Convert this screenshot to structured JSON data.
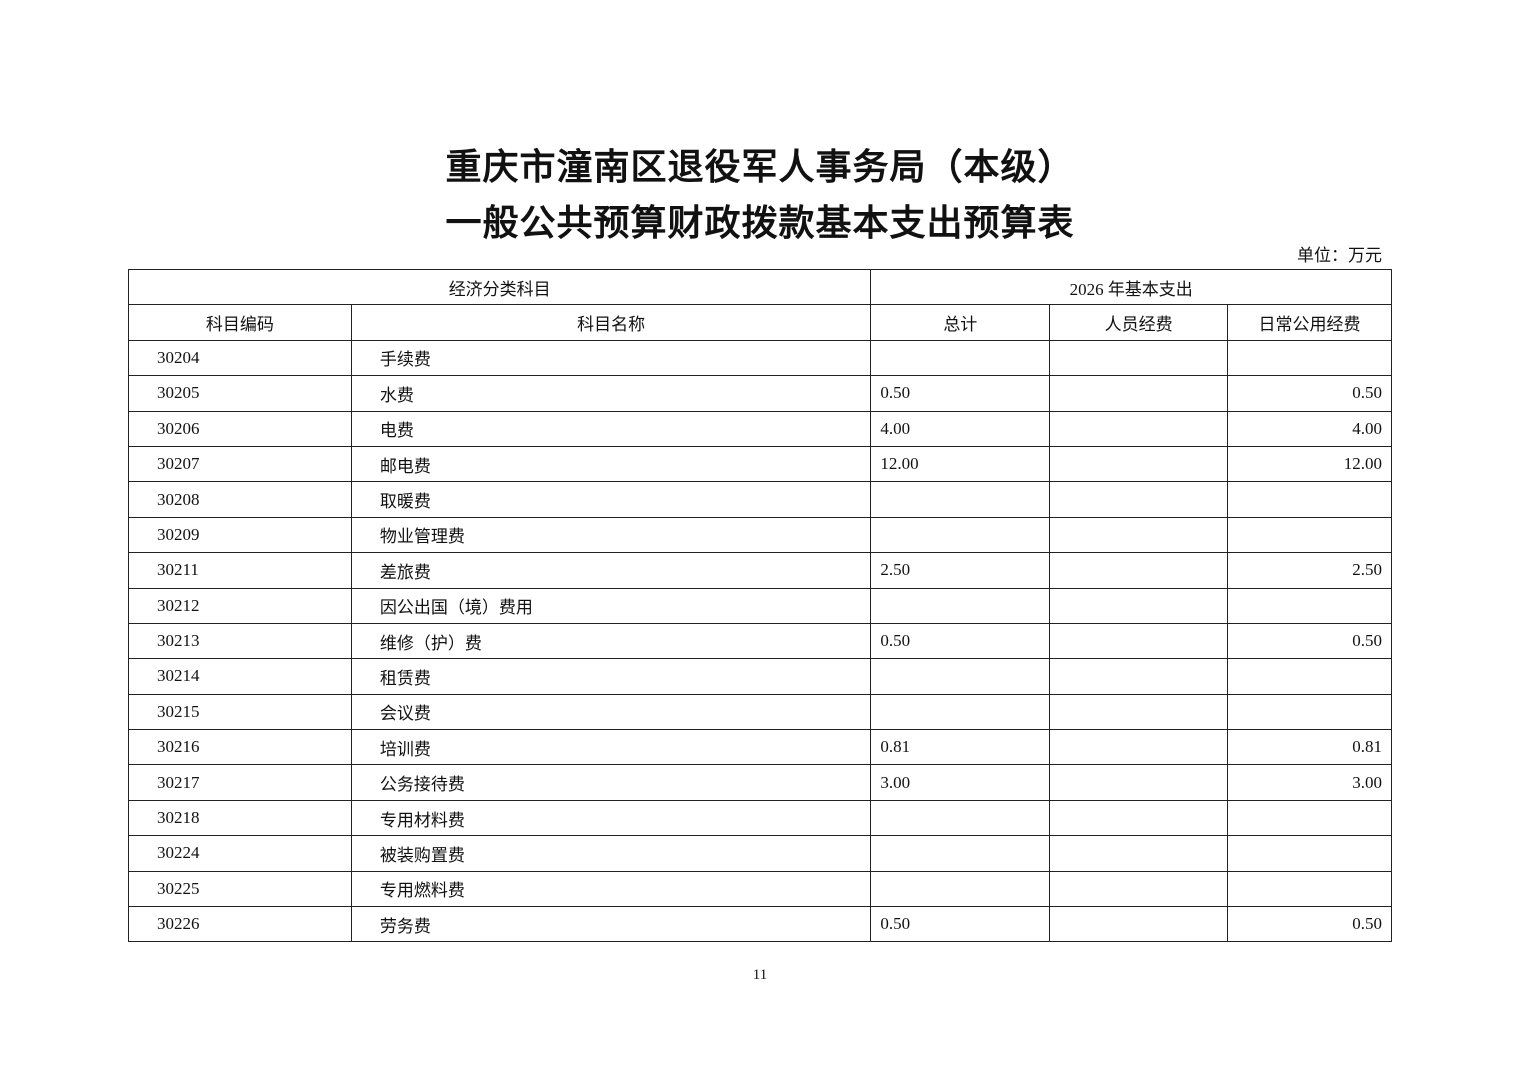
{
  "title_line1": "重庆市潼南区退役军人事务局（本级）",
  "title_line2": "一般公共预算财政拨款基本支出预算表",
  "unit": "单位：万元",
  "header": {
    "group_left": "经济分类科目",
    "group_right": "2026 年基本支出",
    "columns": [
      "科目编码",
      "科目名称",
      "总计",
      "人员经费",
      "日常公用经费"
    ]
  },
  "rows": [
    {
      "code": "30204",
      "name": "手续费",
      "total": "",
      "personnel": "",
      "public": ""
    },
    {
      "code": "30205",
      "name": "水费",
      "total": "0.50",
      "personnel": "",
      "public": "0.50"
    },
    {
      "code": "30206",
      "name": "电费",
      "total": "4.00",
      "personnel": "",
      "public": "4.00"
    },
    {
      "code": "30207",
      "name": "邮电费",
      "total": "12.00",
      "personnel": "",
      "public": "12.00"
    },
    {
      "code": "30208",
      "name": "取暖费",
      "total": "",
      "personnel": "",
      "public": ""
    },
    {
      "code": "30209",
      "name": "物业管理费",
      "total": "",
      "personnel": "",
      "public": ""
    },
    {
      "code": "30211",
      "name": "差旅费",
      "total": "2.50",
      "personnel": "",
      "public": "2.50"
    },
    {
      "code": "30212",
      "name": "因公出国（境）费用",
      "total": "",
      "personnel": "",
      "public": ""
    },
    {
      "code": "30213",
      "name": "维修（护）费",
      "total": "0.50",
      "personnel": "",
      "public": "0.50"
    },
    {
      "code": "30214",
      "name": "租赁费",
      "total": "",
      "personnel": "",
      "public": ""
    },
    {
      "code": "30215",
      "name": "会议费",
      "total": "",
      "personnel": "",
      "public": ""
    },
    {
      "code": "30216",
      "name": "培训费",
      "total": "0.81",
      "personnel": "",
      "public": "0.81"
    },
    {
      "code": "30217",
      "name": "公务接待费",
      "total": "3.00",
      "personnel": "",
      "public": "3.00"
    },
    {
      "code": "30218",
      "name": "专用材料费",
      "total": "",
      "personnel": "",
      "public": ""
    },
    {
      "code": "30224",
      "name": "被装购置费",
      "total": "",
      "personnel": "",
      "public": ""
    },
    {
      "code": "30225",
      "name": "专用燃料费",
      "total": "",
      "personnel": "",
      "public": ""
    },
    {
      "code": "30226",
      "name": "劳务费",
      "total": "0.50",
      "personnel": "",
      "public": "0.50"
    }
  ],
  "page_number": "11"
}
